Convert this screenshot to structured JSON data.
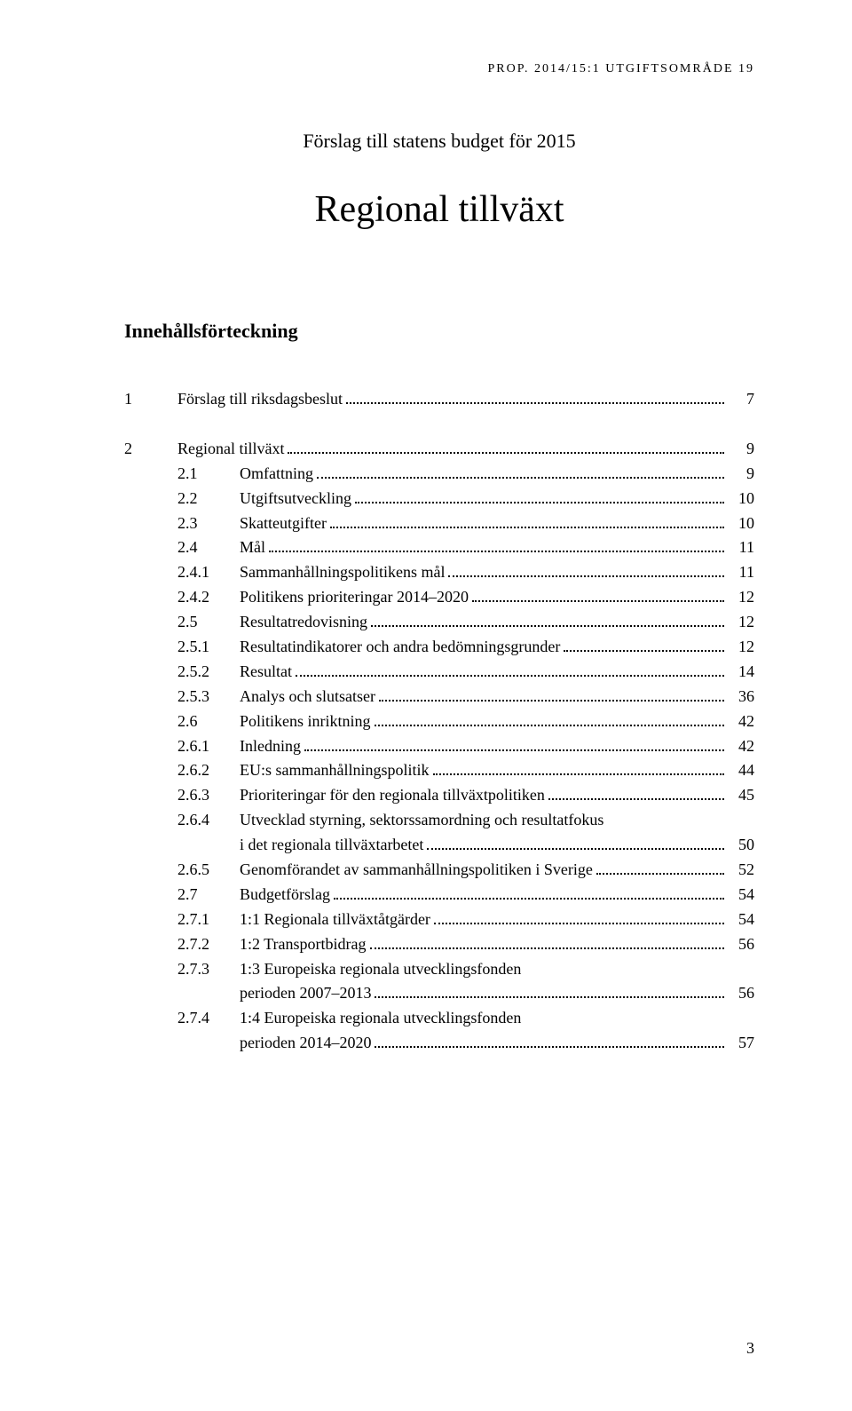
{
  "running_head": "PROP. 2014/15:1 UTGIFTSOMRÅDE 19",
  "subtitle": "Förslag till statens budget för 2015",
  "main_title": "Regional tillväxt",
  "section_heading": "Innehållsförteckning",
  "page_number": "3",
  "toc": [
    {
      "level": 0,
      "num": "1",
      "title": "Förslag till riksdagsbeslut",
      "page": "7",
      "spacer_after": true
    },
    {
      "level": 0,
      "num": "2",
      "title": "Regional tillväxt",
      "page": "9"
    },
    {
      "level": 1,
      "num": "2.1",
      "title": "Omfattning",
      "page": "9"
    },
    {
      "level": 1,
      "num": "2.2",
      "title": "Utgiftsutveckling",
      "page": "10"
    },
    {
      "level": 1,
      "num": "2.3",
      "title": "Skatteutgifter",
      "page": "10"
    },
    {
      "level": 1,
      "num": "2.4",
      "title": "Mål",
      "page": "11"
    },
    {
      "level": 2,
      "num": "2.4.1",
      "title": "Sammanhållningspolitikens mål",
      "page": "11"
    },
    {
      "level": 2,
      "num": "2.4.2",
      "title": "Politikens prioriteringar 2014–2020",
      "page": "12"
    },
    {
      "level": 1,
      "num": "2.5",
      "title": "Resultatredovisning",
      "page": "12"
    },
    {
      "level": 2,
      "num": "2.5.1",
      "title": "Resultatindikatorer och andra bedömningsgrunder",
      "page": "12"
    },
    {
      "level": 2,
      "num": "2.5.2",
      "title": "Resultat",
      "page": "14"
    },
    {
      "level": 2,
      "num": "2.5.3",
      "title": "Analys och slutsatser",
      "page": "36"
    },
    {
      "level": 1,
      "num": "2.6",
      "title": "Politikens inriktning",
      "page": "42"
    },
    {
      "level": 2,
      "num": "2.6.1",
      "title": "Inledning",
      "page": "42"
    },
    {
      "level": 2,
      "num": "2.6.2",
      "title": "EU:s sammanhållningspolitik",
      "page": "44"
    },
    {
      "level": 2,
      "num": "2.6.3",
      "title": "Prioriteringar för den regionala tillväxtpolitiken",
      "page": "45"
    },
    {
      "level": 2,
      "num": "2.6.4",
      "title": "Utvecklad styrning, sektorssamordning och resultatfokus",
      "title2": "i det regionala tillväxtarbetet",
      "page": "50"
    },
    {
      "level": 2,
      "num": "2.6.5",
      "title": "Genomförandet av sammanhållningspolitiken i Sverige",
      "page": "52"
    },
    {
      "level": 1,
      "num": "2.7",
      "title": "Budgetförslag",
      "page": "54"
    },
    {
      "level": 2,
      "num": "2.7.1",
      "title": "1:1 Regionala tillväxtåtgärder",
      "page": "54"
    },
    {
      "level": 2,
      "num": "2.7.2",
      "title": "1:2 Transportbidrag",
      "page": "56"
    },
    {
      "level": 2,
      "num": "2.7.3",
      "title": "1:3 Europeiska regionala utvecklingsfonden",
      "title2": "perioden 2007–2013",
      "page": "56"
    },
    {
      "level": 2,
      "num": "2.7.4",
      "title": "1:4 Europeiska regionala utvecklingsfonden",
      "title2": "perioden 2014–2020",
      "page": "57"
    }
  ]
}
